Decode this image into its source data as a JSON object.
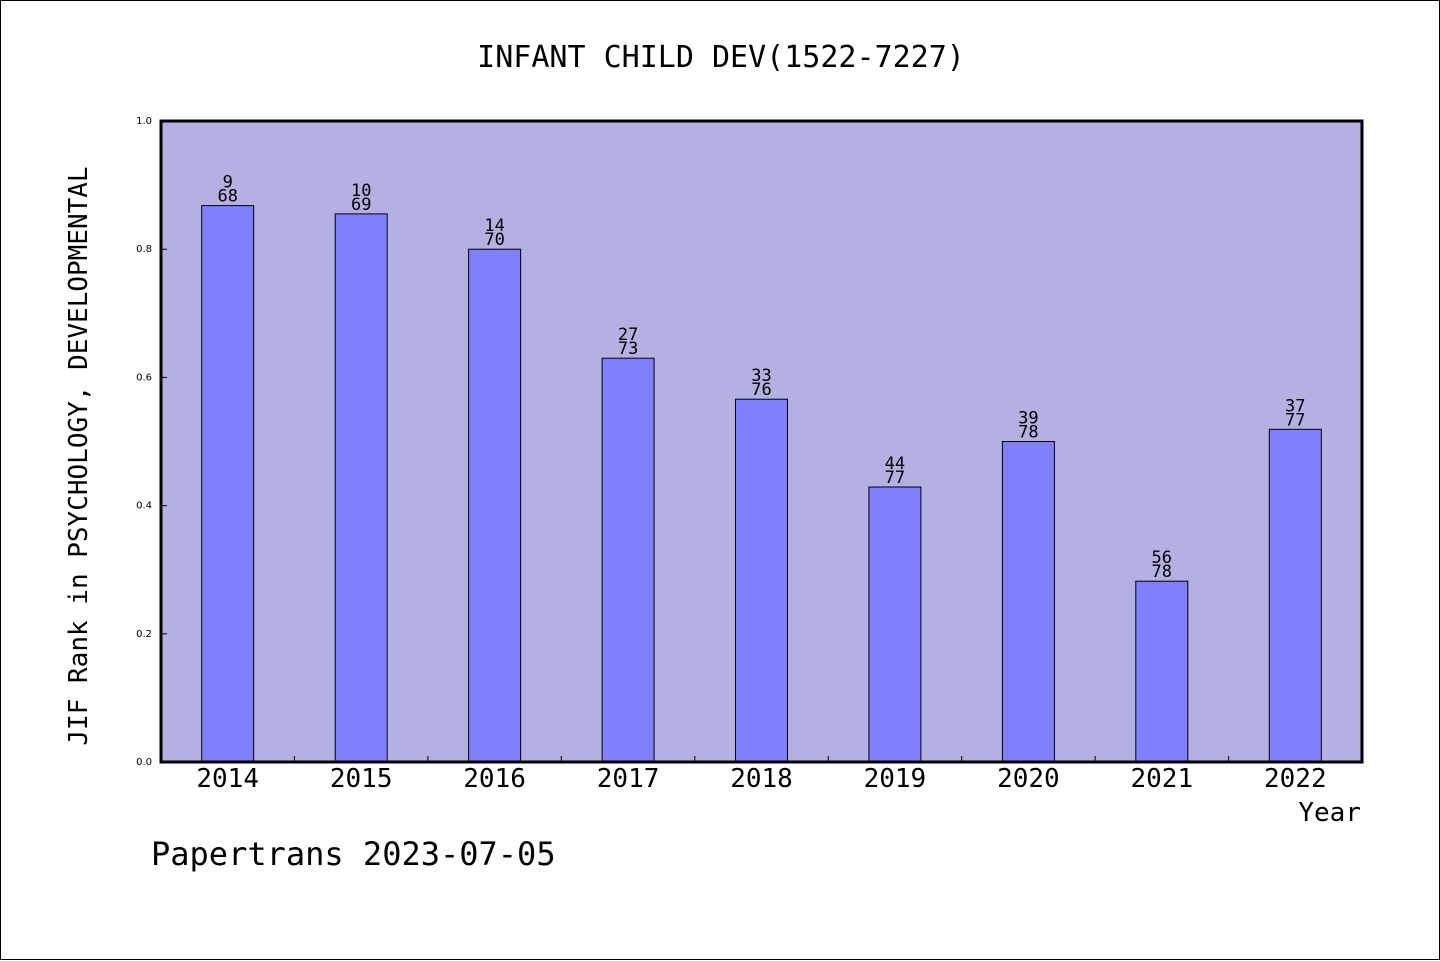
{
  "colors": {
    "plot_background": "#b5b0e2",
    "bar_fill": "#8080ff",
    "bar_stroke": "#000000",
    "text": "#000000"
  },
  "footer": {
    "credit": "Papertrans 2023-07-05"
  },
  "chart_data": {
    "type": "bar",
    "title": "INFANT CHILD DEV(1522-7227)",
    "xlabel": "Year",
    "ylabel": "JIF Rank in PSYCHOLOGY, DEVELOPMENTAL",
    "ylim": [
      0,
      1.0
    ],
    "yticks": [
      "0.0",
      "0.2",
      "0.4",
      "0.6",
      "0.8",
      "1.0"
    ],
    "categories": [
      "2014",
      "2015",
      "2016",
      "2017",
      "2018",
      "2019",
      "2020",
      "2021",
      "2022"
    ],
    "values": [
      0.868,
      0.855,
      0.8,
      0.63,
      0.566,
      0.429,
      0.5,
      0.282,
      0.519
    ],
    "rank_labels": [
      {
        "rank": "9",
        "total": "68"
      },
      {
        "rank": "10",
        "total": "69"
      },
      {
        "rank": "14",
        "total": "70"
      },
      {
        "rank": "27",
        "total": "73"
      },
      {
        "rank": "33",
        "total": "76"
      },
      {
        "rank": "44",
        "total": "77"
      },
      {
        "rank": "39",
        "total": "78"
      },
      {
        "rank": "56",
        "total": "78"
      },
      {
        "rank": "37",
        "total": "77"
      }
    ],
    "grid": false,
    "legend": "none"
  }
}
